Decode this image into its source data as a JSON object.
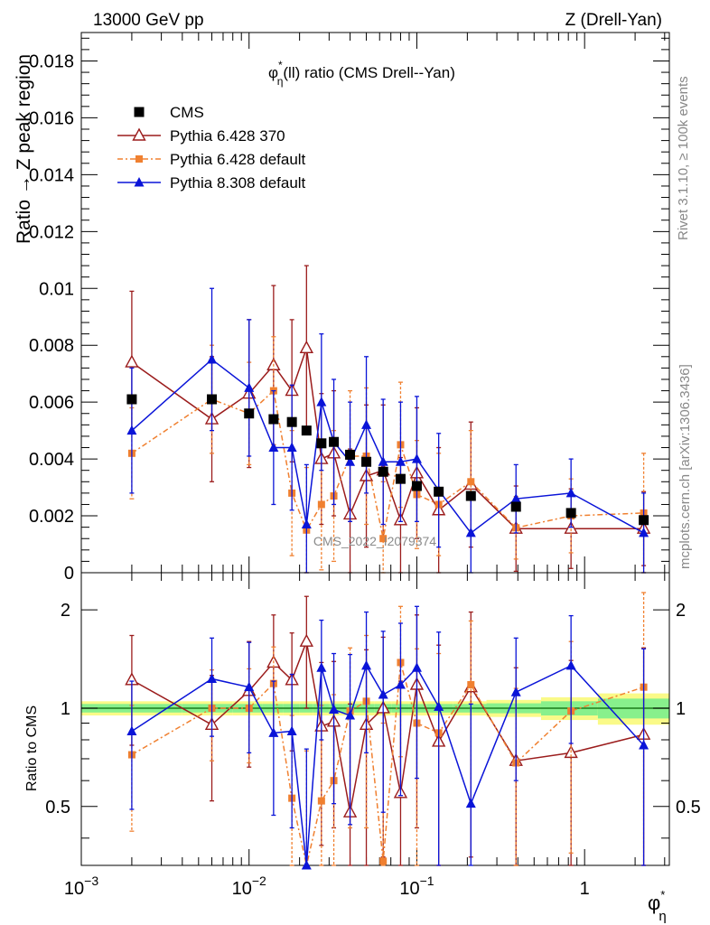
{
  "header": {
    "left": "13000 GeV pp",
    "right": "Z (Drell-Yan)"
  },
  "side_text": {
    "rivet": "Rivet 3.1.10, ≥ 100k events",
    "mcplots": "mcplots.cern.ch [arXiv:1306.3436]"
  },
  "watermark": "CMS_2022_I2079374",
  "colors": {
    "cms": "#000000",
    "p6_370": "#9b1c1c",
    "p6_default": "#f08030",
    "p8": "#0a14d8",
    "band_inner": "#88f08c",
    "band_outer": "#fafa88",
    "ref_line": "#1a7a1a"
  },
  "chart_data": [
    {
      "type": "scatter",
      "title": "φ*η(ll) ratio (CMS Drell--Yan)",
      "title_main": "φ",
      "title_sup": "*",
      "title_sub": "η",
      "title_rest": "(ll) ratio (CMS Drell--Yan)",
      "ylabel": "Ratio → Z peak region",
      "xscale": "log",
      "xlim": [
        0.001,
        3.2
      ],
      "ylim": [
        0,
        0.019
      ],
      "yticks": [
        0,
        0.002,
        0.004,
        0.006,
        0.008,
        0.01,
        0.012,
        0.014,
        0.016,
        0.018
      ],
      "ytick_labels": [
        "0",
        "0.002",
        "0.004",
        "0.006",
        "0.008",
        "0.01",
        "0.012",
        "0.014",
        "0.016",
        "0.018"
      ],
      "legend_position": "top-left",
      "x": [
        0.002,
        0.006,
        0.01,
        0.014,
        0.018,
        0.022,
        0.027,
        0.032,
        0.04,
        0.05,
        0.063,
        0.08,
        0.1,
        0.135,
        0.21,
        0.39,
        0.83,
        2.25
      ],
      "series": [
        {
          "name": "CMS",
          "marker": "square",
          "values": [
            0.0061,
            0.0061,
            0.0056,
            0.0054,
            0.0053,
            0.005,
            0.00455,
            0.0046,
            0.00415,
            0.0039,
            0.00355,
            0.0033,
            0.00305,
            0.00285,
            0.0027,
            0.00232,
            0.0021,
            0.00185
          ]
        },
        {
          "name": "Pythia 6.428 370",
          "marker": "open-triangle",
          "values": [
            0.0074,
            0.0054,
            0.0063,
            0.0073,
            0.0064,
            0.0079,
            0.004,
            0.0042,
            0.00205,
            0.0034,
            0.0036,
            0.00185,
            0.0035,
            0.0022,
            0.0031,
            0.00155,
            0.00155,
            0.00155
          ],
          "err": [
            0.0025,
            0.0022,
            0.0026,
            0.0028,
            0.0025,
            0.0029,
            0.0023,
            0.0022,
            0.0023,
            0.0025,
            0.0023,
            0.0022,
            0.0023,
            0.0022,
            0.0022,
            0.0015,
            0.0014,
            0.0013
          ]
        },
        {
          "name": "Pythia 6.428 default",
          "marker": "filled-square-small",
          "values": [
            0.0042,
            0.0061,
            0.0056,
            0.0064,
            0.0028,
            0.0015,
            0.0024,
            0.0027,
            0.0041,
            0.0041,
            0.0012,
            0.0045,
            0.00275,
            0.0024,
            0.0032,
            0.00158,
            0.002,
            0.0021
          ],
          "err": [
            0.0016,
            0.0019,
            0.0018,
            0.0019,
            0.0022,
            0.0022,
            0.0023,
            0.0023,
            0.0023,
            0.0024,
            0.002,
            0.0022,
            0.0019,
            0.0018,
            0.0018,
            0.0011,
            0.0013,
            0.0021
          ]
        },
        {
          "name": "Pythia 8.308 default",
          "marker": "filled-triangle",
          "values": [
            0.005,
            0.0075,
            0.0065,
            0.0044,
            0.0044,
            0.0017,
            0.006,
            0.0046,
            0.0039,
            0.0052,
            0.0039,
            0.0039,
            0.004,
            0.0029,
            0.0014,
            0.0026,
            0.0028,
            0.0014
          ],
          "err": [
            0.0022,
            0.0025,
            0.0024,
            0.002,
            0.0022,
            0.0021,
            0.0024,
            0.0022,
            0.0021,
            0.0024,
            0.0022,
            0.0021,
            0.0022,
            0.002,
            0.0014,
            0.0012,
            0.0012,
            0.0014
          ]
        }
      ]
    },
    {
      "type": "scatter",
      "ylabel": "Ratio to CMS",
      "xlabel": "φ*η",
      "xlabel_main": "φ",
      "xlabel_sup": "*",
      "xlabel_sub": "η",
      "xscale": "log",
      "xlim": [
        0.001,
        3.2
      ],
      "ylim": [
        0.33,
        2.6
      ],
      "xticks": [
        0.001,
        0.01,
        0.1,
        1
      ],
      "xtick_labels": [
        {
          "base": "10",
          "exp": "−3"
        },
        {
          "base": "10",
          "exp": "−2"
        },
        {
          "base": "10",
          "exp": "−1"
        },
        {
          "base": "1",
          "exp": ""
        }
      ],
      "yticks": [
        0.5,
        1,
        2
      ],
      "ytick_labels": [
        "0.5",
        "1",
        "2"
      ],
      "x": [
        0.002,
        0.006,
        0.01,
        0.014,
        0.018,
        0.022,
        0.027,
        0.032,
        0.04,
        0.05,
        0.063,
        0.08,
        0.1,
        0.135,
        0.21,
        0.39,
        0.83,
        2.25
      ],
      "band_edges": [
        0.001,
        0.004,
        0.008,
        0.012,
        0.016,
        0.02,
        0.024,
        0.03,
        0.036,
        0.045,
        0.056,
        0.071,
        0.09,
        0.115,
        0.165,
        0.26,
        0.55,
        1.2,
        3.2
      ],
      "band_inner_halfwidth": [
        0.03,
        0.03,
        0.03,
        0.03,
        0.03,
        0.03,
        0.03,
        0.03,
        0.03,
        0.03,
        0.03,
        0.03,
        0.03,
        0.03,
        0.03,
        0.035,
        0.05,
        0.07
      ],
      "band_outer_halfwidth": [
        0.05,
        0.05,
        0.05,
        0.05,
        0.05,
        0.05,
        0.05,
        0.05,
        0.05,
        0.05,
        0.05,
        0.05,
        0.05,
        0.05,
        0.05,
        0.06,
        0.08,
        0.11
      ],
      "series": [
        {
          "name": "Pythia 6.428 370",
          "values": [
            1.22,
            0.89,
            1.13,
            1.38,
            1.22,
            1.6,
            0.88,
            0.91,
            0.48,
            0.89,
            1.0,
            0.55,
            1.18,
            0.79,
            1.16,
            0.69,
            0.73,
            0.83
          ],
          "err": [
            0.45,
            0.37,
            0.47,
            0.55,
            0.48,
            0.6,
            0.5,
            0.48,
            0.55,
            0.62,
            0.65,
            0.66,
            0.75,
            0.77,
            0.81,
            0.64,
            0.67,
            0.7
          ]
        },
        {
          "name": "Pythia 6.428 default",
          "values": [
            0.72,
            1.0,
            1.0,
            1.19,
            0.53,
            0.3,
            0.52,
            0.6,
            0.98,
            1.05,
            0.34,
            1.38,
            0.9,
            0.84,
            1.18,
            0.68,
            0.98,
            1.16
          ],
          "err": [
            0.3,
            0.31,
            0.32,
            0.35,
            0.42,
            0.44,
            0.5,
            0.5,
            0.55,
            0.62,
            0.56,
            0.67,
            0.62,
            0.63,
            0.67,
            0.47,
            0.62,
            1.1
          ]
        },
        {
          "name": "Pythia 8.308 default",
          "values": [
            0.85,
            1.23,
            1.16,
            0.84,
            0.85,
            0.33,
            1.33,
            0.99,
            0.95,
            1.35,
            1.1,
            1.18,
            1.33,
            1.01,
            0.51,
            1.12,
            1.35,
            0.77
          ],
          "err": [
            0.36,
            0.41,
            0.43,
            0.37,
            0.42,
            0.42,
            0.53,
            0.48,
            0.51,
            0.62,
            0.62,
            0.64,
            0.72,
            0.7,
            0.52,
            0.52,
            0.57,
            0.75
          ]
        }
      ]
    }
  ]
}
